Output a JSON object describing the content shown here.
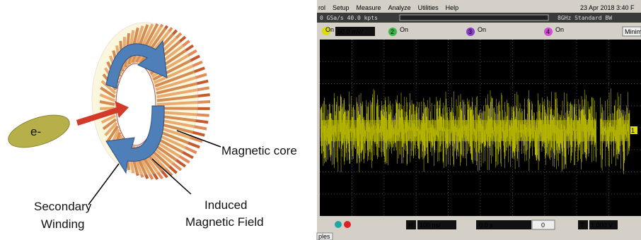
{
  "diagram": {
    "electron_label": "e-",
    "magnetic_core": "Magnetic core",
    "secondary_winding": [
      "Secondary",
      "Winding"
    ],
    "induced_field": [
      "Induced",
      "Magnetic Field"
    ]
  },
  "oscilloscope": {
    "menu": [
      "rol",
      "Setup",
      "Measure",
      "Analyze",
      "Utilities",
      "Help"
    ],
    "date": "23 Apr 2018 3:40 F",
    "acquisition": "0 GSa/s  40.0 kpts",
    "bandwidth": "8GHz Standard BW",
    "ch1_scale": "50.0 mV/",
    "channels": [
      {
        "number": "2",
        "state": "On"
      },
      {
        "number": "3",
        "state": "On"
      },
      {
        "number": "4",
        "state": "On"
      }
    ],
    "ch1_state": "On",
    "minimize": "Minim",
    "timebase_button": "H",
    "timebase": "100 ns/",
    "delay": "0.0 s",
    "navigation": "0",
    "trigger_button": "T",
    "trigger_level": "1.000 V",
    "trace_marker": "1",
    "tab": "ples"
  }
}
